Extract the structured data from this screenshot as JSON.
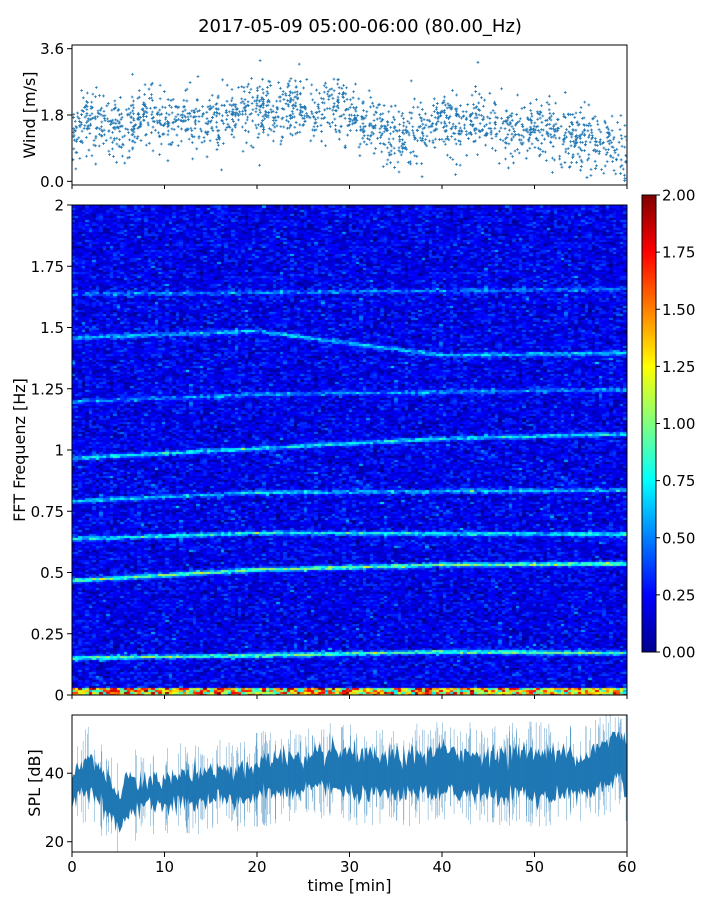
{
  "figure": {
    "title": "2017-05-09 05:00-06:00 (80.00_Hz)"
  },
  "chart_data": [
    {
      "type": "scatter",
      "panel": "wind",
      "ylabel": "Wind [m/s]",
      "xlim": [
        0,
        60
      ],
      "ylim": [
        -0.1,
        3.7
      ],
      "yticks": [
        0.0,
        1.8,
        3.6
      ],
      "ytick_labels": [
        "0.0",
        "1.8",
        "3.6"
      ],
      "color": "#1f77b4",
      "marker": "+",
      "trend": {
        "x": [
          0,
          2,
          4,
          6,
          8,
          10,
          12,
          14,
          16,
          18,
          20,
          22,
          24,
          26,
          28,
          30,
          32,
          34,
          36,
          38,
          40,
          42,
          44,
          46,
          48,
          50,
          52,
          54,
          56,
          58,
          60
        ],
        "y": [
          1.3,
          1.7,
          1.4,
          1.3,
          1.8,
          1.6,
          1.7,
          1.5,
          1.6,
          1.8,
          2.0,
          1.7,
          2.1,
          1.6,
          2.1,
          1.9,
          1.6,
          1.3,
          1.2,
          1.5,
          1.6,
          1.5,
          1.7,
          1.4,
          1.3,
          1.4,
          1.3,
          1.2,
          1.1,
          1.0,
          0.6
        ]
      },
      "spread": 0.45,
      "n_points": 1800
    },
    {
      "type": "heatmap",
      "panel": "spectrogram",
      "ylabel": "FFT Frequenz [Hz]",
      "xlim": [
        0,
        60
      ],
      "ylim": [
        0,
        2
      ],
      "yticks": [
        0,
        0.25,
        0.5,
        0.75,
        1,
        1.25,
        1.5,
        1.75,
        2
      ],
      "ytick_labels": [
        "0",
        "0.25",
        "0.5",
        "0.75",
        "1",
        "1.25",
        "1.5",
        "1.75",
        "2"
      ],
      "colormap": "jet",
      "clim": [
        0,
        2
      ],
      "bands": [
        {
          "x": [
            0,
            20,
            40,
            60
          ],
          "f": [
            0.155,
            0.165,
            0.18,
            0.175
          ],
          "amp": 0.75
        },
        {
          "x": [
            0,
            20,
            40,
            60
          ],
          "f": [
            0.47,
            0.515,
            0.535,
            0.54
          ],
          "amp": 0.8
        },
        {
          "x": [
            0,
            20,
            60
          ],
          "f": [
            0.64,
            0.665,
            0.66
          ],
          "amp": 0.6
        },
        {
          "x": [
            0,
            20,
            60
          ],
          "f": [
            0.795,
            0.83,
            0.84
          ],
          "amp": 0.45
        },
        {
          "x": [
            0,
            20,
            40,
            60
          ],
          "f": [
            0.97,
            1.01,
            1.05,
            1.07
          ],
          "amp": 0.55
        },
        {
          "x": [
            0,
            20,
            60
          ],
          "f": [
            1.2,
            1.23,
            1.25
          ],
          "amp": 0.35
        },
        {
          "x": [
            0,
            20,
            40,
            60
          ],
          "f": [
            1.46,
            1.49,
            1.39,
            1.4
          ],
          "amp": 0.45
        },
        {
          "x": [
            0,
            60
          ],
          "f": [
            1.64,
            1.66
          ],
          "amp": 0.3
        }
      ],
      "low_freq_peak": {
        "f": 0.01,
        "amp": 1.7
      }
    },
    {
      "type": "area",
      "panel": "spl",
      "ylabel": "SPL [dB]",
      "xlabel": "time [min]",
      "xlim": [
        0,
        60
      ],
      "xticks": [
        0,
        10,
        20,
        30,
        40,
        50,
        60
      ],
      "xtick_labels": [
        "0",
        "10",
        "20",
        "30",
        "40",
        "50",
        "60"
      ],
      "ylim": [
        17,
        57
      ],
      "yticks": [
        20,
        40
      ],
      "ytick_labels": [
        "20",
        "40"
      ],
      "color": "#1f77b4",
      "x": [
        0,
        1,
        2,
        3,
        4,
        5,
        6,
        8,
        10,
        12,
        14,
        16,
        18,
        20,
        22,
        24,
        26,
        28,
        30,
        32,
        34,
        36,
        38,
        40,
        42,
        44,
        46,
        48,
        50,
        52,
        54,
        56,
        58,
        59,
        60
      ],
      "upper": [
        38,
        44,
        45,
        41,
        39,
        34,
        39,
        38,
        39,
        40,
        40,
        41,
        41,
        43,
        45,
        45,
        45,
        46,
        46,
        45,
        45,
        45,
        46,
        47,
        46,
        46,
        45,
        47,
        46,
        46,
        46,
        46,
        49,
        52,
        49
      ],
      "lower": [
        30,
        34,
        35,
        31,
        28,
        24,
        28,
        30,
        30,
        31,
        31,
        32,
        32,
        33,
        34,
        34,
        35,
        36,
        34,
        33,
        34,
        33,
        34,
        34,
        34,
        34,
        33,
        34,
        33,
        33,
        34,
        34,
        37,
        40,
        34
      ]
    },
    {
      "type": "colorbar",
      "panel": "colorbar",
      "range": [
        0,
        2
      ],
      "ticks": [
        "0.00",
        "0.25",
        "0.50",
        "0.75",
        "1.00",
        "1.25",
        "1.50",
        "1.75",
        "2.00"
      ]
    }
  ]
}
